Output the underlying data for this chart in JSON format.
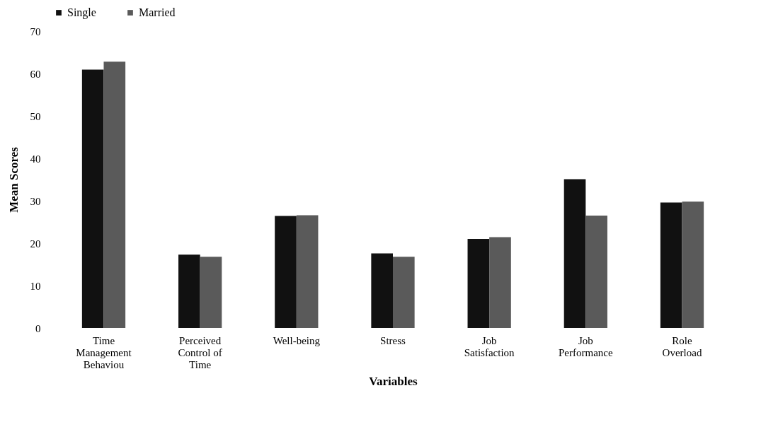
{
  "chart_data": {
    "type": "bar",
    "xlabel": "Variables",
    "ylabel": "Mean Scores",
    "categories": [
      "Time Management Behaviou",
      "Perceived Control of Time",
      "Well-being",
      "Stress",
      "Job Satisfaction",
      "Job Performance",
      "Role Overload"
    ],
    "series": [
      {
        "name": "Single",
        "color": "#111111",
        "values": [
          60.9,
          17.3,
          26.4,
          17.6,
          21.0,
          35.1,
          29.6
        ]
      },
      {
        "name": "Married",
        "color": "#5a5a5a",
        "values": [
          62.8,
          16.8,
          26.6,
          16.8,
          21.4,
          26.5,
          29.8
        ]
      }
    ],
    "ylim": [
      0,
      70
    ],
    "yticks": [
      0,
      10,
      20,
      30,
      40,
      50,
      60,
      70
    ],
    "grid": false,
    "legend": "top"
  }
}
